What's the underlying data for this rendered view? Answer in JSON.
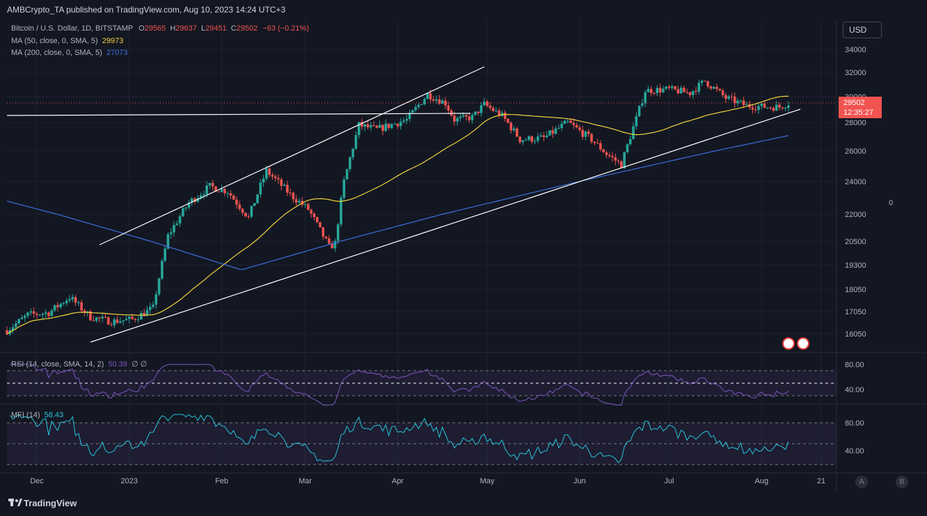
{
  "header": {
    "publisher": "AMBCrypto_TA published on TradingView.com, Aug 10, 2023 14:24 UTC+3"
  },
  "legend": {
    "symbol": "Bitcoin / U.S. Dollar, 1D, BITSTAMP",
    "o_label": "O",
    "o": "29565",
    "h_label": "H",
    "h": "29637",
    "l_label": "L",
    "l": "29451",
    "c_label": "C",
    "c": "29502",
    "chg": "−63 (−0.21%)",
    "ma50_label": "MA (50, close, 0, SMA, 5)",
    "ma50": "29973",
    "ma200_label": "MA (200, close, 0, SMA, 5)",
    "ma200": "27073",
    "rsi_label": "RSI (14, close, SMA, 14, 2)",
    "rsi": "50.39",
    "rsi_extra": "∅ ∅",
    "mfi_label": "MFI (14)",
    "mfi": "58.43"
  },
  "currency": "USD",
  "last_price": {
    "price": "29502",
    "countdown": "12:35:27"
  },
  "right_zero": "0",
  "buttons": {
    "a": "A",
    "b": "B"
  },
  "brand": "TradingView",
  "colors": {
    "bg": "#131722",
    "up": "#26a69a",
    "down": "#ef5350",
    "ma50": "#f5d33f",
    "ma200": "#3e6fe0",
    "rsi": "#7e57c2",
    "mfi": "#26c6da",
    "trend": "#ffffff"
  },
  "chart_data": {
    "type": "candlestick",
    "y_ticks": [
      "34000",
      "32000",
      "30000",
      "28000",
      "26000",
      "24000",
      "22000",
      "20500",
      "19300",
      "18050",
      "17050",
      "16050"
    ],
    "x_ticks": [
      "Dec",
      "2023",
      "Feb",
      "Mar",
      "Apr",
      "May",
      "Jun",
      "Jul",
      "Aug",
      "21"
    ],
    "series": [
      {
        "name": "MA (50, close, 0, SMA, 5)",
        "last": 29973
      },
      {
        "name": "MA (200, close, 0, SMA, 5)",
        "last": 27073
      }
    ],
    "close_path": [
      [
        "2022-11-21",
        16200
      ],
      [
        "2022-11-28",
        16900
      ],
      [
        "2022-12-05",
        17000
      ],
      [
        "2022-12-12",
        17700
      ],
      [
        "2022-12-19",
        16800
      ],
      [
        "2022-12-26",
        16600
      ],
      [
        "2023-01-02",
        16700
      ],
      [
        "2023-01-09",
        17200
      ],
      [
        "2023-01-14",
        20800
      ],
      [
        "2023-01-21",
        22700
      ],
      [
        "2023-01-28",
        23700
      ],
      [
        "2023-02-03",
        23400
      ],
      [
        "2023-02-10",
        21800
      ],
      [
        "2023-02-16",
        24700
      ],
      [
        "2023-02-24",
        23200
      ],
      [
        "2023-03-02",
        22300
      ],
      [
        "2023-03-09",
        20200
      ],
      [
        "2023-03-11",
        20400
      ],
      [
        "2023-03-14",
        24000
      ],
      [
        "2023-03-19",
        27800
      ],
      [
        "2023-03-25",
        27500
      ],
      [
        "2023-04-04",
        28200
      ],
      [
        "2023-04-11",
        30200
      ],
      [
        "2023-04-17",
        29500
      ],
      [
        "2023-04-20",
        28200
      ],
      [
        "2023-04-26",
        28400
      ],
      [
        "2023-04-30",
        29400
      ],
      [
        "2023-05-06",
        28500
      ],
      [
        "2023-05-12",
        26800
      ],
      [
        "2023-05-20",
        26900
      ],
      [
        "2023-05-28",
        28000
      ],
      [
        "2023-06-05",
        26800
      ],
      [
        "2023-06-10",
        25800
      ],
      [
        "2023-06-15",
        25100
      ],
      [
        "2023-06-20",
        28300
      ],
      [
        "2023-06-23",
        30500
      ],
      [
        "2023-07-01",
        30600
      ],
      [
        "2023-07-08",
        30300
      ],
      [
        "2023-07-13",
        31300
      ],
      [
        "2023-07-20",
        29900
      ],
      [
        "2023-07-27",
        29300
      ],
      [
        "2023-08-03",
        29200
      ],
      [
        "2023-08-07",
        29200
      ],
      [
        "2023-08-10",
        29502
      ]
    ],
    "rsi": {
      "ticks": [
        "80.00",
        "40.00"
      ],
      "last": 50.39
    },
    "mfi": {
      "ticks": [
        "80.00",
        "40.00"
      ],
      "last": 58.43
    }
  }
}
